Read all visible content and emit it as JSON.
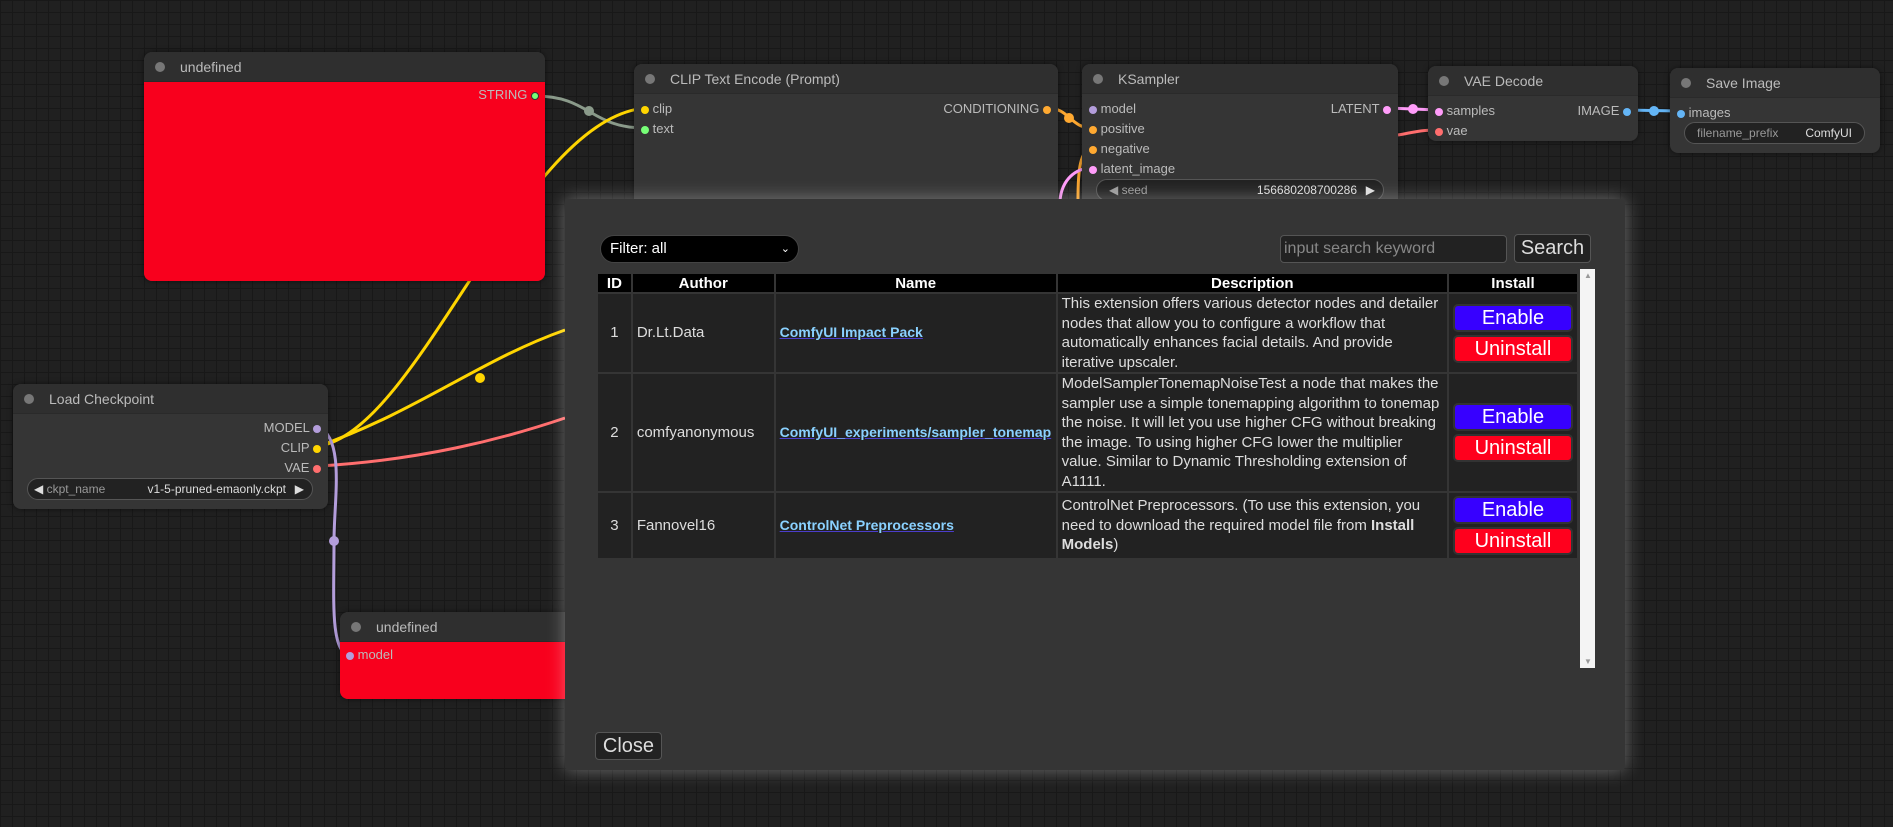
{
  "nodes": {
    "undefined_top": {
      "title": "undefined",
      "output": "STRING"
    },
    "clip_text": {
      "title": "CLIP Text Encode (Prompt)",
      "inputs": [
        "clip",
        "text"
      ],
      "output": "CONDITIONING"
    },
    "ksampler": {
      "title": "KSampler",
      "inputs": [
        "model",
        "positive",
        "negative",
        "latent_image"
      ],
      "output": "LATENT",
      "seed_label": "seed",
      "seed_value": "156680208700286"
    },
    "vae_decode": {
      "title": "VAE Decode",
      "inputs": [
        "samples",
        "vae"
      ],
      "output": "IMAGE"
    },
    "save_image": {
      "title": "Save Image",
      "input": "images",
      "prefix_label": "filename_prefix",
      "prefix_value": "ComfyUI"
    },
    "load_checkpoint": {
      "title": "Load Checkpoint",
      "outputs": [
        "MODEL",
        "CLIP",
        "VAE"
      ],
      "ckpt_label": "ckpt_name",
      "ckpt_value": "v1-5-pruned-emaonly.ckpt"
    },
    "undefined_bottom": {
      "title": "undefined",
      "input": "model"
    }
  },
  "dialog": {
    "filter": "Filter: all",
    "search_placeholder": "input search keyword",
    "search_label": "Search",
    "columns": [
      "ID",
      "Author",
      "Name",
      "Description",
      "Install"
    ],
    "rows": [
      {
        "id": "1",
        "author": "Dr.Lt.Data",
        "name": "ComfyUI Impact Pack",
        "description": "This extension offers various detector nodes and detailer nodes that allow you to configure a workflow that automatically enhances facial details. And provide iterative upscaler.",
        "enable": "Enable",
        "uninstall": "Uninstall"
      },
      {
        "id": "2",
        "author": "comfyanonymous",
        "name": "ComfyUI_experiments/sampler_tonemap",
        "description": "ModelSamplerTonemapNoiseTest a node that makes the sampler use a simple tonemapping algorithm to tonemap the noise. It will let you use higher CFG without breaking the image. To using higher CFG lower the multiplier value. Similar to Dynamic Thresholding extension of A1111.",
        "enable": "Enable",
        "uninstall": "Uninstall"
      },
      {
        "id": "3",
        "author": "Fannovel16",
        "name": "ControlNet Preprocessors",
        "description_pre": "ControlNet Preprocessors. (To use this extension, you need to download the required model file from ",
        "description_bold": "Install Models",
        "description_post": ")",
        "enable": "Enable",
        "uninstall": "Uninstall"
      }
    ],
    "close_label": "Close"
  },
  "colors": {
    "enable": "#3700ff",
    "uninstall": "#ff001d",
    "node_error": "#f8001d"
  }
}
